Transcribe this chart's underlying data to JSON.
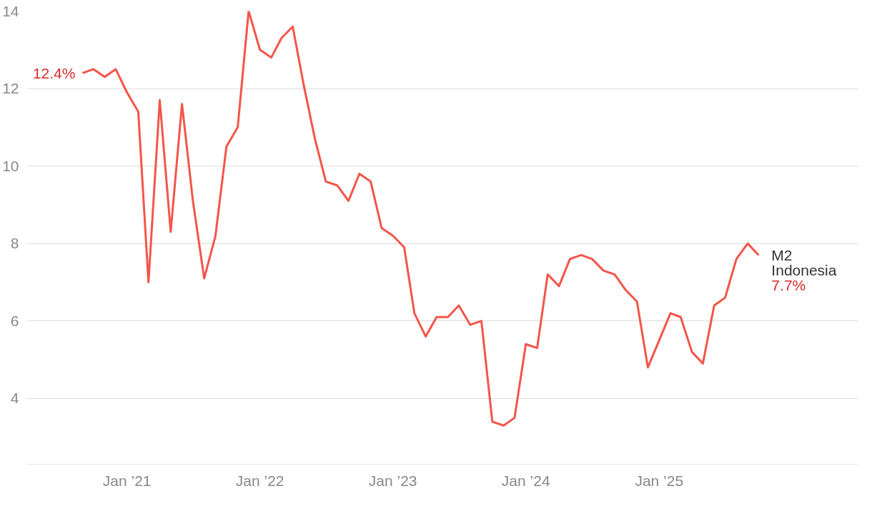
{
  "chart_data": {
    "type": "line",
    "x": [
      "2020-09",
      "2020-10",
      "2020-11",
      "2020-12",
      "2021-01",
      "2021-02",
      "2021-03",
      "2021-04",
      "2021-05",
      "2021-06",
      "2021-07",
      "2021-08",
      "2021-09",
      "2021-10",
      "2021-11",
      "2021-12",
      "2022-01",
      "2022-02",
      "2022-03",
      "2022-04",
      "2022-05",
      "2022-06",
      "2022-07",
      "2022-08",
      "2022-09",
      "2022-10",
      "2022-11",
      "2022-12",
      "2023-01",
      "2023-02",
      "2023-03",
      "2023-04",
      "2023-05",
      "2023-06",
      "2023-07",
      "2023-08",
      "2023-09",
      "2023-10",
      "2023-11",
      "2023-12",
      "2024-01",
      "2024-02",
      "2024-03",
      "2024-04",
      "2024-05",
      "2024-06",
      "2024-07",
      "2024-08",
      "2024-09",
      "2024-10",
      "2024-11",
      "2024-12",
      "2025-01",
      "2025-02",
      "2025-03",
      "2025-04",
      "2025-05",
      "2025-06",
      "2025-07",
      "2025-08",
      "2025-09",
      "2025-10"
    ],
    "series": [
      {
        "name": "M2 Indonesia",
        "color": "#f4554a",
        "values": [
          12.4,
          12.5,
          12.3,
          12.5,
          11.9,
          11.4,
          7.0,
          11.7,
          8.3,
          11.6,
          9.1,
          7.1,
          8.2,
          10.5,
          11.0,
          14.0,
          13.0,
          12.8,
          13.3,
          13.6,
          12.1,
          10.7,
          9.6,
          9.5,
          9.1,
          9.8,
          9.6,
          8.4,
          8.2,
          7.9,
          6.2,
          5.6,
          6.1,
          6.1,
          6.4,
          5.9,
          6.0,
          3.4,
          3.3,
          3.5,
          5.4,
          5.3,
          7.2,
          6.9,
          7.6,
          7.7,
          7.6,
          7.3,
          7.2,
          6.8,
          6.5,
          4.8,
          5.5,
          6.2,
          6.1,
          5.2,
          4.9,
          6.4,
          6.6,
          7.6,
          8.0,
          7.7
        ],
        "value_labels": [
          "12.4%",
          null,
          null,
          null,
          null,
          null,
          null,
          null,
          null,
          null,
          null,
          null,
          null,
          null,
          null,
          null,
          null,
          null,
          null,
          null,
          null,
          null,
          null,
          null,
          null,
          null,
          null,
          null,
          null,
          null,
          null,
          null,
          null,
          null,
          null,
          null,
          null,
          null,
          null,
          null,
          null,
          null,
          null,
          null,
          null,
          null,
          null,
          null,
          null,
          null,
          null,
          null,
          null,
          null,
          null,
          null,
          null,
          null,
          null,
          null,
          null,
          "7.7%"
        ]
      }
    ],
    "xlim": [
      "2020-04-01",
      "2026-07-01"
    ],
    "xticks": [
      {
        "value": "2021-01",
        "label": "Jan ’21"
      },
      {
        "value": "2022-01",
        "label": "Jan ’22"
      },
      {
        "value": "2023-01",
        "label": "Jan ’23"
      },
      {
        "value": "2024-01",
        "label": "Jan ’24"
      },
      {
        "value": "2025-01",
        "label": "Jan ’25"
      }
    ],
    "ylim": [
      2.3,
      14
    ],
    "yticks": [
      4,
      6,
      8,
      10,
      12,
      14
    ],
    "grid": "y",
    "line_style": "solid",
    "marker": "none"
  }
}
